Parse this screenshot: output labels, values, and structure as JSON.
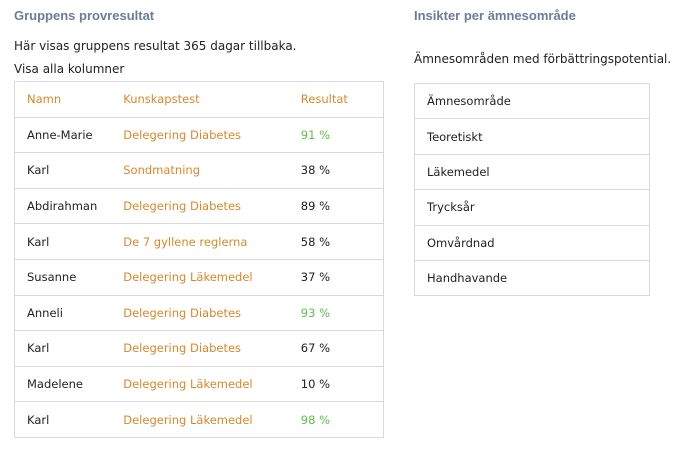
{
  "results_section": {
    "title": "Gruppens provresultat",
    "description": "Här visas gruppens resultat 365 dagar tillbaka.",
    "show_all_columns": "Visa alla kolumner",
    "columns": [
      "Namn",
      "Kunskapstest",
      "Resultat"
    ],
    "rows": [
      {
        "name": "Anne-Marie",
        "test": "Delegering Diabetes",
        "result": "91 %",
        "highlight": true
      },
      {
        "name": "Karl",
        "test": "Sondmatning",
        "result": "38 %",
        "highlight": false
      },
      {
        "name": "Abdirahman",
        "test": "Delegering Diabetes",
        "result": "89 %",
        "highlight": false
      },
      {
        "name": "Karl",
        "test": "De 7 gyllene reglerna",
        "result": "58 %",
        "highlight": false
      },
      {
        "name": "Susanne",
        "test": "Delegering Läkemedel",
        "result": "37 %",
        "highlight": false
      },
      {
        "name": "Anneli",
        "test": "Delegering Diabetes",
        "result": "93 %",
        "highlight": true
      },
      {
        "name": "Karl",
        "test": "Delegering Diabetes",
        "result": "67 %",
        "highlight": false
      },
      {
        "name": "Madelene",
        "test": "Delegering Läkemedel",
        "result": "10 %",
        "highlight": false
      },
      {
        "name": "Karl",
        "test": "Delegering Läkemedel",
        "result": "98 %",
        "highlight": true
      }
    ]
  },
  "insights_section": {
    "title": "Insikter per ämnesområde",
    "description": "Ämnesområden med förbättringspotential.",
    "column": "Ämnesområde",
    "areas": [
      "Teoretiskt",
      "Läkemedel",
      "Trycksår",
      "Omvårdnad",
      "Handhavande"
    ]
  },
  "colors": {
    "heading": "#6b7d99",
    "accent": "#d4892b",
    "score_high": "#5cbf47",
    "border": "#d9d9d9"
  }
}
